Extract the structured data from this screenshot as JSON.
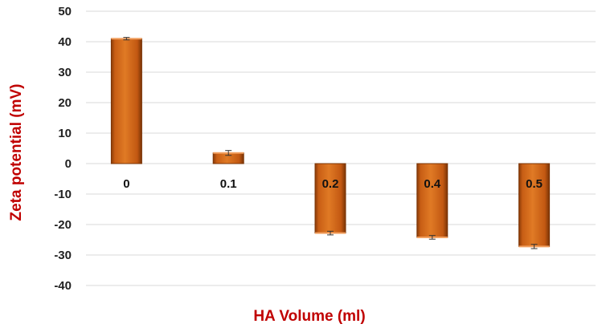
{
  "chart_data": {
    "type": "bar",
    "categories": [
      "0",
      "0.1",
      "0.2",
      "0.4",
      "0.5"
    ],
    "values": [
      41,
      3.5,
      -22.8,
      -24.2,
      -27.2
    ],
    "error": [
      0.4,
      0.8,
      0.6,
      0.6,
      0.7
    ],
    "xlabel": "HA Volume (ml)",
    "ylabel": "Zeta potential (mV)",
    "ylim": [
      -40,
      50
    ],
    "yticks": [
      50,
      40,
      30,
      20,
      10,
      0,
      -10,
      -20,
      -30,
      -40
    ],
    "grid": true,
    "legend": "none",
    "colors": {
      "bar": "#d2691e",
      "bar_dark": "#7a3406",
      "label": "#c00000",
      "grid": "#d9d9d9"
    }
  }
}
